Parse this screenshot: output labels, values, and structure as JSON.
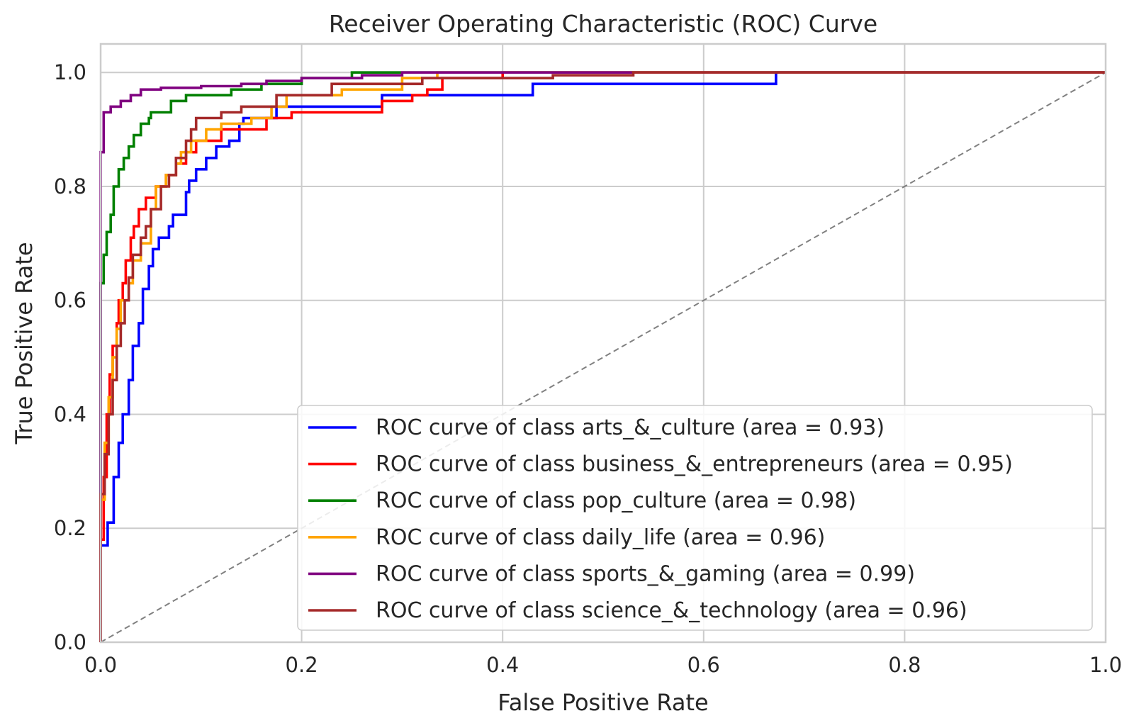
{
  "chart_data": {
    "type": "line",
    "title": "Receiver Operating Characteristic (ROC) Curve",
    "xlabel": "False Positive Rate",
    "ylabel": "True Positive Rate",
    "xlim": [
      0.0,
      1.0
    ],
    "ylim": [
      0.0,
      1.05
    ],
    "x_ticks": [
      "0.0",
      "0.2",
      "0.4",
      "0.6",
      "0.8",
      "1.0"
    ],
    "y_ticks": [
      "0.0",
      "0.2",
      "0.4",
      "0.6",
      "0.8",
      "1.0"
    ],
    "x_tick_values": [
      0.0,
      0.2,
      0.4,
      0.6,
      0.8,
      1.0
    ],
    "y_tick_values": [
      0.0,
      0.2,
      0.4,
      0.6,
      0.8,
      1.0
    ],
    "grid": true,
    "legend_position": "lower-right",
    "reference_line": {
      "points": [
        [
          0,
          0
        ],
        [
          1,
          1
        ]
      ],
      "color": "#808080",
      "style": "dashed"
    },
    "series": [
      {
        "name": "ROC curve of class arts_&_culture (area = 0.93)",
        "color": "#0000ff",
        "points": [
          [
            0,
            0
          ],
          [
            0,
            0.17
          ],
          [
            0.007,
            0.17
          ],
          [
            0.007,
            0.21
          ],
          [
            0.013,
            0.21
          ],
          [
            0.013,
            0.29
          ],
          [
            0.018,
            0.29
          ],
          [
            0.018,
            0.35
          ],
          [
            0.022,
            0.35
          ],
          [
            0.022,
            0.4
          ],
          [
            0.028,
            0.4
          ],
          [
            0.028,
            0.46
          ],
          [
            0.032,
            0.46
          ],
          [
            0.032,
            0.52
          ],
          [
            0.038,
            0.52
          ],
          [
            0.038,
            0.56
          ],
          [
            0.042,
            0.56
          ],
          [
            0.042,
            0.62
          ],
          [
            0.048,
            0.62
          ],
          [
            0.048,
            0.66
          ],
          [
            0.052,
            0.66
          ],
          [
            0.052,
            0.69
          ],
          [
            0.058,
            0.69
          ],
          [
            0.058,
            0.71
          ],
          [
            0.068,
            0.71
          ],
          [
            0.068,
            0.73
          ],
          [
            0.072,
            0.73
          ],
          [
            0.072,
            0.75
          ],
          [
            0.085,
            0.75
          ],
          [
            0.085,
            0.79
          ],
          [
            0.088,
            0.79
          ],
          [
            0.088,
            0.81
          ],
          [
            0.095,
            0.81
          ],
          [
            0.095,
            0.83
          ],
          [
            0.105,
            0.83
          ],
          [
            0.105,
            0.85
          ],
          [
            0.115,
            0.85
          ],
          [
            0.115,
            0.87
          ],
          [
            0.128,
            0.87
          ],
          [
            0.128,
            0.88
          ],
          [
            0.138,
            0.88
          ],
          [
            0.138,
            0.91
          ],
          [
            0.142,
            0.91
          ],
          [
            0.142,
            0.92
          ],
          [
            0.175,
            0.92
          ],
          [
            0.175,
            0.94
          ],
          [
            0.21,
            0.94
          ],
          [
            0.21,
            0.94
          ],
          [
            0.28,
            0.94
          ],
          [
            0.28,
            0.96
          ],
          [
            0.43,
            0.96
          ],
          [
            0.43,
            0.98
          ],
          [
            0.672,
            0.98
          ],
          [
            0.672,
            1.0
          ],
          [
            1.0,
            1.0
          ]
        ]
      },
      {
        "name": "ROC curve of class business_&_entrepreneurs (area = 0.95)",
        "color": "#ff0000",
        "points": [
          [
            0,
            0
          ],
          [
            0,
            0.18
          ],
          [
            0.003,
            0.18
          ],
          [
            0.003,
            0.29
          ],
          [
            0.006,
            0.29
          ],
          [
            0.006,
            0.4
          ],
          [
            0.009,
            0.4
          ],
          [
            0.009,
            0.47
          ],
          [
            0.012,
            0.47
          ],
          [
            0.012,
            0.52
          ],
          [
            0.016,
            0.52
          ],
          [
            0.016,
            0.56
          ],
          [
            0.018,
            0.56
          ],
          [
            0.018,
            0.6
          ],
          [
            0.022,
            0.6
          ],
          [
            0.022,
            0.63
          ],
          [
            0.025,
            0.63
          ],
          [
            0.025,
            0.67
          ],
          [
            0.03,
            0.67
          ],
          [
            0.03,
            0.71
          ],
          [
            0.033,
            0.71
          ],
          [
            0.033,
            0.73
          ],
          [
            0.038,
            0.73
          ],
          [
            0.038,
            0.76
          ],
          [
            0.045,
            0.76
          ],
          [
            0.045,
            0.78
          ],
          [
            0.055,
            0.78
          ],
          [
            0.055,
            0.8
          ],
          [
            0.065,
            0.8
          ],
          [
            0.065,
            0.82
          ],
          [
            0.075,
            0.82
          ],
          [
            0.075,
            0.84
          ],
          [
            0.085,
            0.84
          ],
          [
            0.085,
            0.86
          ],
          [
            0.095,
            0.86
          ],
          [
            0.095,
            0.88
          ],
          [
            0.12,
            0.88
          ],
          [
            0.12,
            0.9
          ],
          [
            0.165,
            0.9
          ],
          [
            0.165,
            0.92
          ],
          [
            0.19,
            0.92
          ],
          [
            0.19,
            0.93
          ],
          [
            0.28,
            0.93
          ],
          [
            0.28,
            0.95
          ],
          [
            0.31,
            0.95
          ],
          [
            0.31,
            0.96
          ],
          [
            0.325,
            0.96
          ],
          [
            0.325,
            0.97
          ],
          [
            0.34,
            0.97
          ],
          [
            0.34,
            0.99
          ],
          [
            0.4,
            0.99
          ],
          [
            0.4,
            1.0
          ],
          [
            1.0,
            1.0
          ]
        ]
      },
      {
        "name": "ROC curve of class pop_culture (area = 0.98)",
        "color": "#008000",
        "points": [
          [
            0,
            0
          ],
          [
            0,
            0.63
          ],
          [
            0.003,
            0.63
          ],
          [
            0.003,
            0.68
          ],
          [
            0.006,
            0.68
          ],
          [
            0.006,
            0.72
          ],
          [
            0.01,
            0.72
          ],
          [
            0.01,
            0.75
          ],
          [
            0.013,
            0.75
          ],
          [
            0.013,
            0.8
          ],
          [
            0.018,
            0.8
          ],
          [
            0.018,
            0.83
          ],
          [
            0.023,
            0.83
          ],
          [
            0.023,
            0.85
          ],
          [
            0.028,
            0.85
          ],
          [
            0.028,
            0.87
          ],
          [
            0.033,
            0.87
          ],
          [
            0.033,
            0.89
          ],
          [
            0.04,
            0.89
          ],
          [
            0.04,
            0.91
          ],
          [
            0.048,
            0.91
          ],
          [
            0.048,
            0.92
          ],
          [
            0.05,
            0.92
          ],
          [
            0.05,
            0.93
          ],
          [
            0.07,
            0.93
          ],
          [
            0.07,
            0.95
          ],
          [
            0.085,
            0.95
          ],
          [
            0.085,
            0.96
          ],
          [
            0.13,
            0.96
          ],
          [
            0.13,
            0.97
          ],
          [
            0.16,
            0.97
          ],
          [
            0.16,
            0.98
          ],
          [
            0.2,
            0.98
          ],
          [
            0.2,
            0.99
          ],
          [
            0.25,
            0.99
          ],
          [
            0.25,
            1.0
          ],
          [
            1.0,
            1.0
          ]
        ]
      },
      {
        "name": "ROC curve of class daily_life (area = 0.96)",
        "color": "#ffa500",
        "points": [
          [
            0,
            0
          ],
          [
            0,
            0.25
          ],
          [
            0.004,
            0.25
          ],
          [
            0.004,
            0.35
          ],
          [
            0.008,
            0.35
          ],
          [
            0.008,
            0.43
          ],
          [
            0.012,
            0.43
          ],
          [
            0.012,
            0.5
          ],
          [
            0.016,
            0.5
          ],
          [
            0.016,
            0.55
          ],
          [
            0.02,
            0.55
          ],
          [
            0.02,
            0.6
          ],
          [
            0.028,
            0.6
          ],
          [
            0.028,
            0.63
          ],
          [
            0.032,
            0.63
          ],
          [
            0.032,
            0.67
          ],
          [
            0.04,
            0.67
          ],
          [
            0.04,
            0.7
          ],
          [
            0.05,
            0.7
          ],
          [
            0.05,
            0.76
          ],
          [
            0.055,
            0.76
          ],
          [
            0.055,
            0.8
          ],
          [
            0.065,
            0.8
          ],
          [
            0.065,
            0.82
          ],
          [
            0.075,
            0.82
          ],
          [
            0.075,
            0.84
          ],
          [
            0.08,
            0.84
          ],
          [
            0.08,
            0.86
          ],
          [
            0.09,
            0.86
          ],
          [
            0.09,
            0.88
          ],
          [
            0.105,
            0.88
          ],
          [
            0.105,
            0.9
          ],
          [
            0.12,
            0.9
          ],
          [
            0.12,
            0.91
          ],
          [
            0.15,
            0.91
          ],
          [
            0.15,
            0.92
          ],
          [
            0.17,
            0.92
          ],
          [
            0.17,
            0.94
          ],
          [
            0.185,
            0.94
          ],
          [
            0.185,
            0.96
          ],
          [
            0.24,
            0.96
          ],
          [
            0.24,
            0.97
          ],
          [
            0.3,
            0.97
          ],
          [
            0.3,
            0.99
          ],
          [
            0.335,
            0.99
          ],
          [
            0.335,
            1.0
          ],
          [
            1.0,
            1.0
          ]
        ]
      },
      {
        "name": "ROC curve of class sports_&_gaming (area = 0.99)",
        "color": "#800080",
        "points": [
          [
            0,
            0
          ],
          [
            0,
            0.86
          ],
          [
            0.003,
            0.86
          ],
          [
            0.003,
            0.93
          ],
          [
            0.01,
            0.93
          ],
          [
            0.01,
            0.94
          ],
          [
            0.02,
            0.94
          ],
          [
            0.02,
            0.95
          ],
          [
            0.03,
            0.95
          ],
          [
            0.03,
            0.96
          ],
          [
            0.04,
            0.96
          ],
          [
            0.04,
            0.97
          ],
          [
            0.06,
            0.97
          ],
          [
            0.06,
            0.973
          ],
          [
            0.1,
            0.973
          ],
          [
            0.1,
            0.976
          ],
          [
            0.14,
            0.976
          ],
          [
            0.14,
            0.98
          ],
          [
            0.165,
            0.98
          ],
          [
            0.165,
            0.985
          ],
          [
            0.2,
            0.985
          ],
          [
            0.2,
            0.99
          ],
          [
            0.26,
            0.99
          ],
          [
            0.26,
            0.995
          ],
          [
            0.3,
            0.995
          ],
          [
            0.3,
            1.0
          ],
          [
            1.0,
            1.0
          ]
        ]
      },
      {
        "name": "ROC curve of class science_&_technology (area = 0.96)",
        "color": "#a52a2a",
        "points": [
          [
            0,
            0
          ],
          [
            0,
            0.26
          ],
          [
            0.004,
            0.26
          ],
          [
            0.004,
            0.33
          ],
          [
            0.008,
            0.33
          ],
          [
            0.008,
            0.4
          ],
          [
            0.012,
            0.4
          ],
          [
            0.012,
            0.46
          ],
          [
            0.016,
            0.46
          ],
          [
            0.016,
            0.52
          ],
          [
            0.02,
            0.52
          ],
          [
            0.02,
            0.56
          ],
          [
            0.024,
            0.56
          ],
          [
            0.024,
            0.6
          ],
          [
            0.028,
            0.6
          ],
          [
            0.028,
            0.64
          ],
          [
            0.032,
            0.64
          ],
          [
            0.032,
            0.68
          ],
          [
            0.04,
            0.68
          ],
          [
            0.04,
            0.71
          ],
          [
            0.045,
            0.71
          ],
          [
            0.045,
            0.73
          ],
          [
            0.05,
            0.73
          ],
          [
            0.05,
            0.76
          ],
          [
            0.06,
            0.76
          ],
          [
            0.06,
            0.8
          ],
          [
            0.068,
            0.8
          ],
          [
            0.068,
            0.82
          ],
          [
            0.075,
            0.82
          ],
          [
            0.075,
            0.85
          ],
          [
            0.085,
            0.85
          ],
          [
            0.085,
            0.88
          ],
          [
            0.09,
            0.88
          ],
          [
            0.09,
            0.9
          ],
          [
            0.095,
            0.9
          ],
          [
            0.095,
            0.92
          ],
          [
            0.12,
            0.92
          ],
          [
            0.12,
            0.93
          ],
          [
            0.14,
            0.93
          ],
          [
            0.14,
            0.94
          ],
          [
            0.175,
            0.94
          ],
          [
            0.175,
            0.96
          ],
          [
            0.23,
            0.96
          ],
          [
            0.23,
            0.98
          ],
          [
            0.32,
            0.98
          ],
          [
            0.32,
            0.99
          ],
          [
            0.45,
            0.99
          ],
          [
            0.45,
            0.995
          ],
          [
            0.53,
            0.995
          ],
          [
            0.53,
            1.0
          ],
          [
            1.0,
            1.0
          ]
        ]
      }
    ]
  }
}
